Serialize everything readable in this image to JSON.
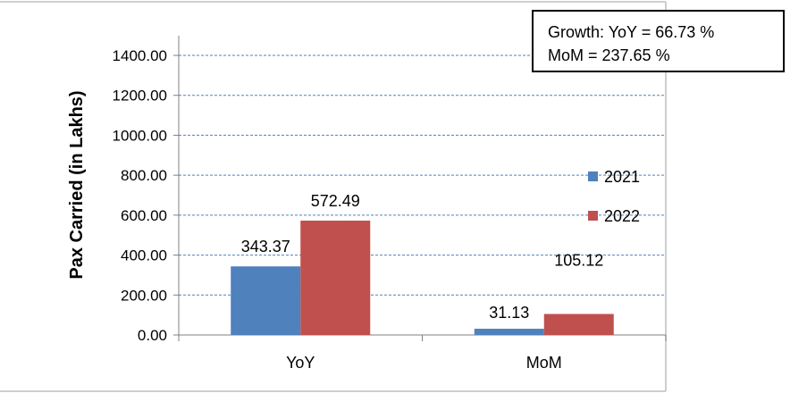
{
  "chart_data": {
    "type": "bar",
    "categories": [
      "YoY",
      "MoM"
    ],
    "series": [
      {
        "name": "2021",
        "values": [
          343.37,
          31.13
        ],
        "labels": [
          "343.37",
          "31.13"
        ],
        "color": "#4f81bd"
      },
      {
        "name": "2022",
        "values": [
          572.49,
          105.12
        ],
        "labels": [
          "572.49",
          "105.12"
        ],
        "color": "#c0504d"
      }
    ],
    "ylabel": "Pax Carried (in Lakhs)",
    "xlabel": "",
    "ylim": [
      0,
      1400
    ],
    "yticks": [
      "0.00",
      "200.00",
      "400.00",
      "600.00",
      "800.00",
      "1000.00",
      "1200.00",
      "1400.00"
    ],
    "grid": true,
    "gridline_color": "#4f81bd",
    "legend_placement": "right",
    "annotation": {
      "line1": "Growth:  YoY   = 66.73 %",
      "line2": "MoM = 237.65 %"
    }
  }
}
